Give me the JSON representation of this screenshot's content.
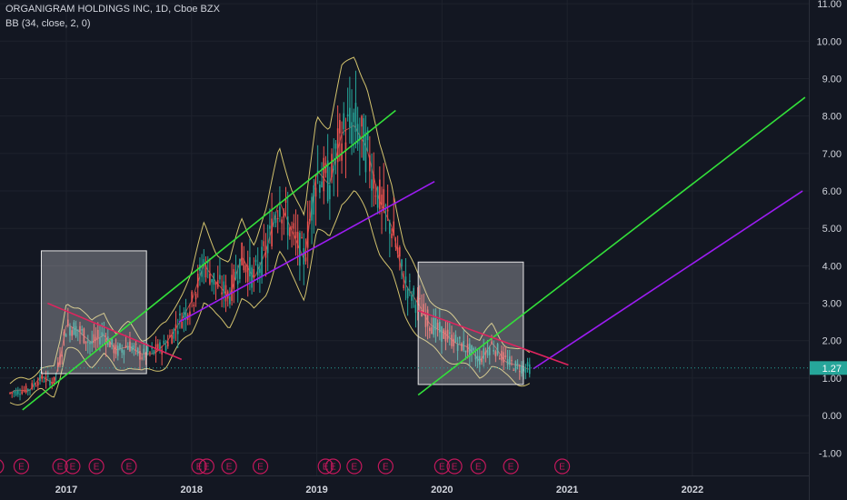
{
  "header": {
    "title": "ORGANIGRAM HOLDINGS INC, 1D, Cboe BZX",
    "indicator": "BB (34, close, 2, 0)"
  },
  "chart_data": {
    "type": "candlestick",
    "title": "ORGANIGRAM HOLDINGS INC, 1D, Cboe BZX",
    "indicator": "BB (34, close, 2, 0)",
    "x_ticks": [
      "2017",
      "2018",
      "2019",
      "2020",
      "2021",
      "2022"
    ],
    "y_ticks": [
      "11.00",
      "10.00",
      "9.00",
      "8.00",
      "7.00",
      "6.00",
      "5.00",
      "4.00",
      "3.00",
      "2.00",
      "1.00",
      "0.00",
      "-1.00"
    ],
    "ylim": [
      -1.6,
      11.1
    ],
    "x_range": [
      "2016-07",
      "2022-12"
    ],
    "last_price": "1.27",
    "price_series": {
      "x": [
        2016.55,
        2016.7,
        2016.8,
        2016.9,
        2016.95,
        2017.0,
        2017.1,
        2017.2,
        2017.3,
        2017.4,
        2017.5,
        2017.6,
        2017.7,
        2017.8,
        2017.9,
        2018.0,
        2018.1,
        2018.2,
        2018.3,
        2018.4,
        2018.5,
        2018.6,
        2018.7,
        2018.8,
        2018.9,
        2019.0,
        2019.1,
        2019.2,
        2019.3,
        2019.4,
        2019.5,
        2019.6,
        2019.7,
        2019.8,
        2019.9,
        2020.0,
        2020.1,
        2020.2,
        2020.3,
        2020.4,
        2020.5,
        2020.6,
        2020.7
      ],
      "y": [
        0.6,
        0.7,
        1.0,
        0.9,
        1.5,
        2.4,
        2.3,
        1.9,
        2.2,
        1.7,
        1.9,
        1.6,
        1.7,
        1.9,
        2.5,
        3.0,
        4.1,
        3.5,
        3.2,
        4.2,
        3.7,
        4.4,
        5.8,
        4.9,
        4.2,
        6.5,
        6.2,
        7.5,
        7.8,
        7.1,
        5.8,
        5.0,
        3.6,
        3.0,
        2.5,
        2.2,
        2.0,
        1.8,
        1.5,
        1.9,
        1.5,
        1.3,
        1.27
      ]
    },
    "trendlines": [
      {
        "color": "#33e03a",
        "x": [
          2016.65,
          2019.63
        ],
        "y": [
          0.15,
          8.15
        ]
      },
      {
        "color": "#33e03a",
        "x": [
          2019.81,
          2022.9
        ],
        "y": [
          0.55,
          8.5
        ]
      },
      {
        "color": "#9c1cf2",
        "x": [
          2017.9,
          2019.94
        ],
        "y": [
          2.5,
          6.25
        ]
      },
      {
        "color": "#9c1cf2",
        "x": [
          2020.73,
          2022.88
        ],
        "y": [
          1.25,
          6.0
        ]
      },
      {
        "color": "#e0245e",
        "x": [
          2016.85,
          2017.92
        ],
        "y": [
          3.0,
          1.5
        ]
      },
      {
        "color": "#e0245e",
        "x": [
          2019.81,
          2021.01
        ],
        "y": [
          2.8,
          1.35
        ]
      }
    ],
    "boxes": [
      {
        "x": [
          2016.8,
          2017.64
        ],
        "y": [
          1.12,
          4.4
        ]
      },
      {
        "x": [
          2019.81,
          2020.65
        ],
        "y": [
          0.83,
          4.1
        ]
      }
    ],
    "events": {
      "label": "E",
      "x": [
        2016.44,
        2016.64,
        2016.95,
        2017.05,
        2017.24,
        2017.5,
        2018.06,
        2018.12,
        2018.3,
        2018.55,
        2019.07,
        2019.13,
        2019.3,
        2019.55,
        2020.0,
        2020.1,
        2020.29,
        2020.55,
        2020.96
      ]
    },
    "grid": true,
    "colors": {
      "background": "#131722",
      "up": "#26a69a",
      "down": "#ef5350",
      "bb_band": "#f5e17a",
      "bb_mid": "#e0534c",
      "last_price": "#26a69a"
    }
  }
}
